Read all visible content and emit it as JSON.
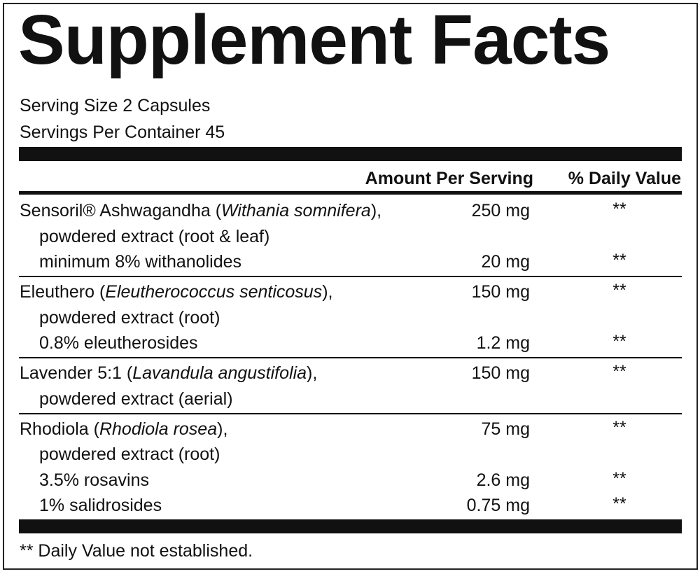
{
  "header": {
    "title": "Supplement Facts",
    "serving_size": "Serving Size 2 Capsules",
    "servings_per_container": "Servings Per Container 45"
  },
  "table": {
    "columns": [
      "Amount Per Serving",
      "% Daily Value"
    ],
    "groups": [
      {
        "rows": [
          {
            "parts": [
              {
                "text": "Sensoril® Ashwagandha ("
              },
              {
                "text": "Withania somnifera",
                "italic": true
              },
              {
                "text": "),"
              }
            ],
            "amount": "250 mg",
            "daily_value": "**"
          },
          {
            "parts": [
              {
                "text": "powdered extract (root & leaf)"
              }
            ]
          },
          {
            "parts": [
              {
                "text": "minimum 8% withanolides"
              }
            ],
            "amount": "20 mg",
            "daily_value": "**"
          }
        ]
      },
      {
        "rows": [
          {
            "parts": [
              {
                "text": "Eleuthero ("
              },
              {
                "text": "Eleutherococcus senticosus",
                "italic": true
              },
              {
                "text": "),"
              }
            ],
            "amount": "150 mg",
            "daily_value": "**"
          },
          {
            "parts": [
              {
                "text": "powdered extract (root)"
              }
            ]
          },
          {
            "parts": [
              {
                "text": "0.8% eleutherosides"
              }
            ],
            "amount": "1.2 mg",
            "daily_value": "**"
          }
        ]
      },
      {
        "rows": [
          {
            "parts": [
              {
                "text": "Lavender 5:1 ("
              },
              {
                "text": "Lavandula angustifolia",
                "italic": true
              },
              {
                "text": "),"
              }
            ],
            "amount": "150 mg",
            "daily_value": "**"
          },
          {
            "parts": [
              {
                "text": "powdered extract (aerial)"
              }
            ]
          }
        ]
      },
      {
        "rows": [
          {
            "parts": [
              {
                "text": "Rhodiola ("
              },
              {
                "text": "Rhodiola rosea",
                "italic": true
              },
              {
                "text": "),"
              }
            ],
            "amount": "75 mg",
            "daily_value": "**"
          },
          {
            "parts": [
              {
                "text": "powdered extract (root)"
              }
            ]
          },
          {
            "parts": [
              {
                "text": "3.5% rosavins"
              }
            ],
            "amount": "2.6 mg",
            "daily_value": "**"
          },
          {
            "parts": [
              {
                "text": "1% salidrosides"
              }
            ],
            "amount": "0.75 mg",
            "daily_value": "**"
          }
        ]
      }
    ]
  },
  "footnote": "** Daily Value not established."
}
